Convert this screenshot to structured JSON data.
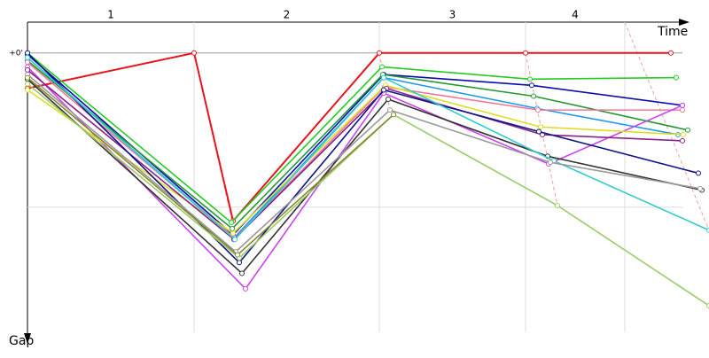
{
  "chart_data": {
    "type": "line",
    "x_label": "Time",
    "y_label": "Gap",
    "laps": [
      "1",
      "2",
      "3",
      "4"
    ],
    "lap_bounds": [
      0,
      188,
      397,
      562,
      674
    ],
    "xlim": [
      0,
      769
    ],
    "ylim": [
      -2,
      18.7
    ],
    "yticks": [
      {
        "value": 0,
        "label": "+0'"
      }
    ],
    "ygrid": [
      10
    ],
    "grid": true,
    "series": [
      {
        "color": "#e8141a",
        "x": [
          0,
          188,
          232,
          397,
          562,
          726
        ],
        "values": [
          2.3,
          0,
          10.9,
          0,
          0,
          0
        ]
      },
      {
        "color": "#22cc22",
        "x": [
          0,
          230,
          400,
          567,
          732
        ],
        "values": [
          0,
          11.0,
          0.9,
          1.7,
          1.6
        ]
      },
      {
        "color": "#0b0bb0",
        "x": [
          0,
          232,
          402,
          569,
          739
        ],
        "values": [
          0.1,
          11.8,
          1.4,
          2.1,
          3.4
        ]
      },
      {
        "color": "#2299ee",
        "x": [
          0,
          233,
          402,
          575,
          734
        ],
        "values": [
          0.3,
          12.0,
          1.6,
          3.6,
          5.3
        ]
      },
      {
        "color": "#229933",
        "x": [
          0,
          231,
          401,
          571,
          745
        ],
        "values": [
          0.5,
          11.4,
          1.4,
          2.8,
          5.0
        ]
      },
      {
        "color": "#ee7799",
        "x": [
          0,
          234,
          403,
          576,
          739
        ],
        "values": [
          0.6,
          12.0,
          2.2,
          3.7,
          3.7
        ]
      },
      {
        "color": "#cc44ee",
        "x": [
          0,
          246,
          402,
          588,
          739
        ],
        "values": [
          0.9,
          15.3,
          2.6,
          7.2,
          3.4
        ]
      },
      {
        "color": "#dddd22",
        "x": [
          0,
          232,
          404,
          579,
          740
        ],
        "values": [
          2.4,
          11.7,
          2.1,
          4.8,
          5.3
        ]
      },
      {
        "color": "#882288",
        "x": [
          0,
          233,
          405,
          581,
          739
        ],
        "values": [
          1.1,
          12.1,
          2.3,
          5.3,
          5.7
        ]
      },
      {
        "color": "#111188",
        "x": [
          0,
          239,
          402,
          577,
          757
        ],
        "values": [
          0,
          13.6,
          2.4,
          5.1,
          7.8
        ]
      },
      {
        "color": "#333333",
        "x": [
          0,
          242,
          407,
          587,
          761
        ],
        "values": [
          1.7,
          14.3,
          3.0,
          6.7,
          8.9
        ]
      },
      {
        "color": "#33cccc",
        "x": [
          0,
          234,
          402,
          594,
          769
        ],
        "values": [
          0.3,
          12.1,
          1.6,
          7.0,
          11.5
        ]
      },
      {
        "color": "#999999",
        "x": [
          0,
          235,
          409,
          590,
          759
        ],
        "values": [
          1.4,
          12.9,
          3.7,
          7.1,
          8.8
        ]
      },
      {
        "color": "#99cc66",
        "x": [
          0,
          239,
          413,
          598,
          769
        ],
        "values": [
          2.0,
          13.3,
          4.0,
          9.9,
          16.4
        ]
      },
      {
        "color": "#888833",
        "x": [
          0,
          237,
          413
        ],
        "values": [
          1.6,
          13.1,
          4.0
        ]
      }
    ]
  }
}
